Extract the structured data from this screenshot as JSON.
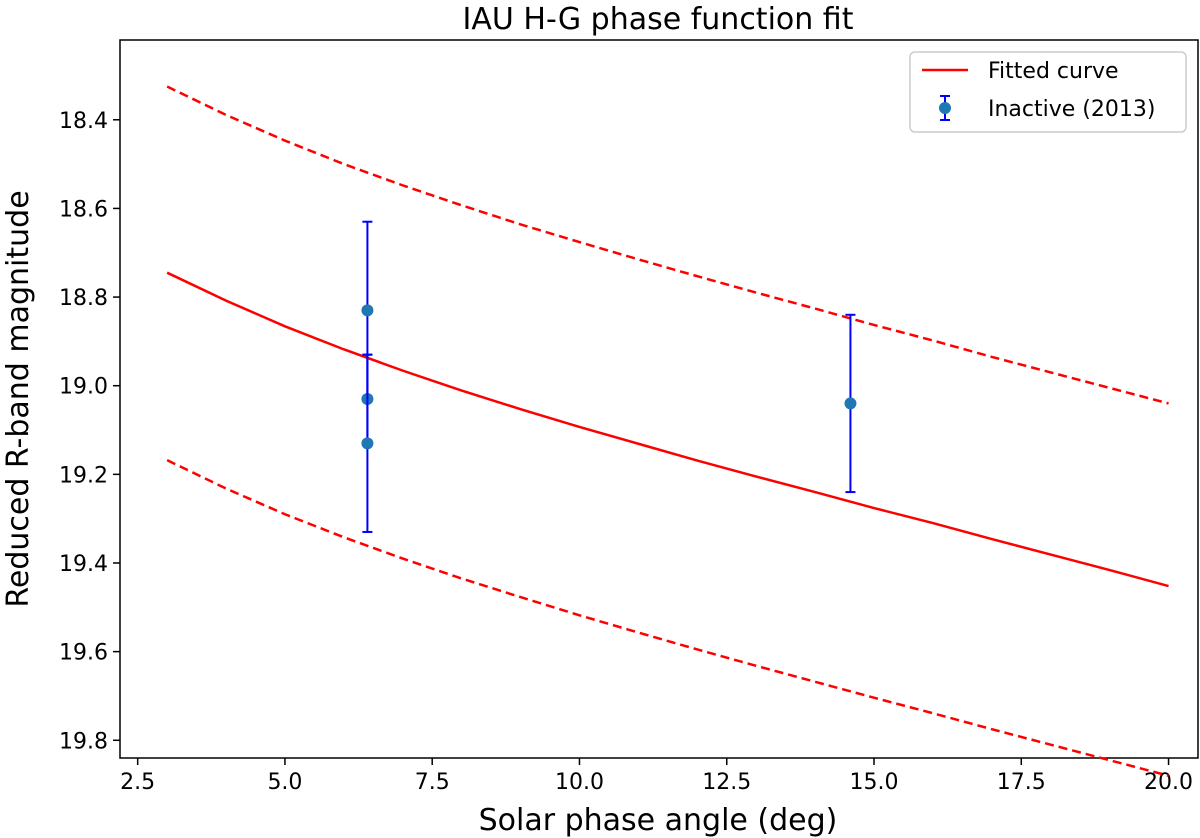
{
  "chart_data": {
    "type": "scatter",
    "title": "IAU H-G phase function fit",
    "xlabel": "Solar phase angle (deg)",
    "ylabel": "Reduced R-band magnitude",
    "xlim": [
      2.2,
      20.5
    ],
    "ylim": [
      19.84,
      18.22
    ],
    "y_inverted": true,
    "grid": false,
    "legend_position": "top-right",
    "xticks": [
      "2.5",
      "5.0",
      "7.5",
      "10.0",
      "12.5",
      "15.0",
      "17.5",
      "20.0"
    ],
    "yticks": [
      "18.4",
      "18.6",
      "18.8",
      "19.0",
      "19.2",
      "19.4",
      "19.6",
      "19.8"
    ],
    "legend": [
      {
        "label": "Fitted curve",
        "style": "line",
        "color": "#ff0000"
      },
      {
        "label": "Inactive (2013)",
        "style": "errorbar-point",
        "color": "#1f77b4",
        "errcolor": "#0000ff"
      }
    ],
    "series": [
      {
        "name": "Fitted curve",
        "style": "solid",
        "color": "#ff0000",
        "x": [
          3,
          4,
          5,
          6,
          7,
          8,
          9,
          10,
          11,
          12,
          13,
          14,
          15,
          16,
          17,
          18,
          19,
          20
        ],
        "y": [
          18.745,
          18.808,
          18.866,
          18.918,
          18.966,
          19.011,
          19.053,
          19.093,
          19.131,
          19.169,
          19.205,
          19.24,
          19.276,
          19.31,
          19.346,
          19.381,
          19.416,
          19.452
        ]
      },
      {
        "style": "dashed",
        "color": "#ff0000",
        "x": [
          3,
          4,
          5,
          6,
          7,
          8,
          9,
          10,
          11,
          12,
          13,
          14,
          15,
          16,
          17,
          18,
          19,
          20
        ],
        "y": [
          18.325,
          18.389,
          18.447,
          18.5,
          18.548,
          18.593,
          18.636,
          18.676,
          18.715,
          18.753,
          18.79,
          18.826,
          18.863,
          18.898,
          18.935,
          18.97,
          19.005,
          19.04
        ]
      },
      {
        "style": "dashed",
        "color": "#ff0000",
        "x": [
          3,
          4,
          5,
          6,
          7,
          8,
          9,
          10,
          11,
          12,
          13,
          14,
          15,
          16,
          17,
          18,
          19,
          20
        ],
        "y": [
          19.168,
          19.232,
          19.29,
          19.342,
          19.39,
          19.435,
          19.477,
          19.518,
          19.557,
          19.595,
          19.632,
          19.668,
          19.704,
          19.739,
          19.775,
          19.81,
          19.845,
          19.88
        ]
      },
      {
        "name": "Inactive (2013)",
        "style": "errorbar",
        "color": "#1f77b4",
        "errcolor": "#0000ff",
        "points": [
          {
            "x": 6.4,
            "y": 18.83,
            "err": 0.2
          },
          {
            "x": 6.4,
            "y": 19.03,
            "err": 0.1
          },
          {
            "x": 6.4,
            "y": 19.13,
            "err": 0.2
          },
          {
            "x": 14.6,
            "y": 19.04,
            "err": 0.2
          }
        ]
      }
    ]
  }
}
